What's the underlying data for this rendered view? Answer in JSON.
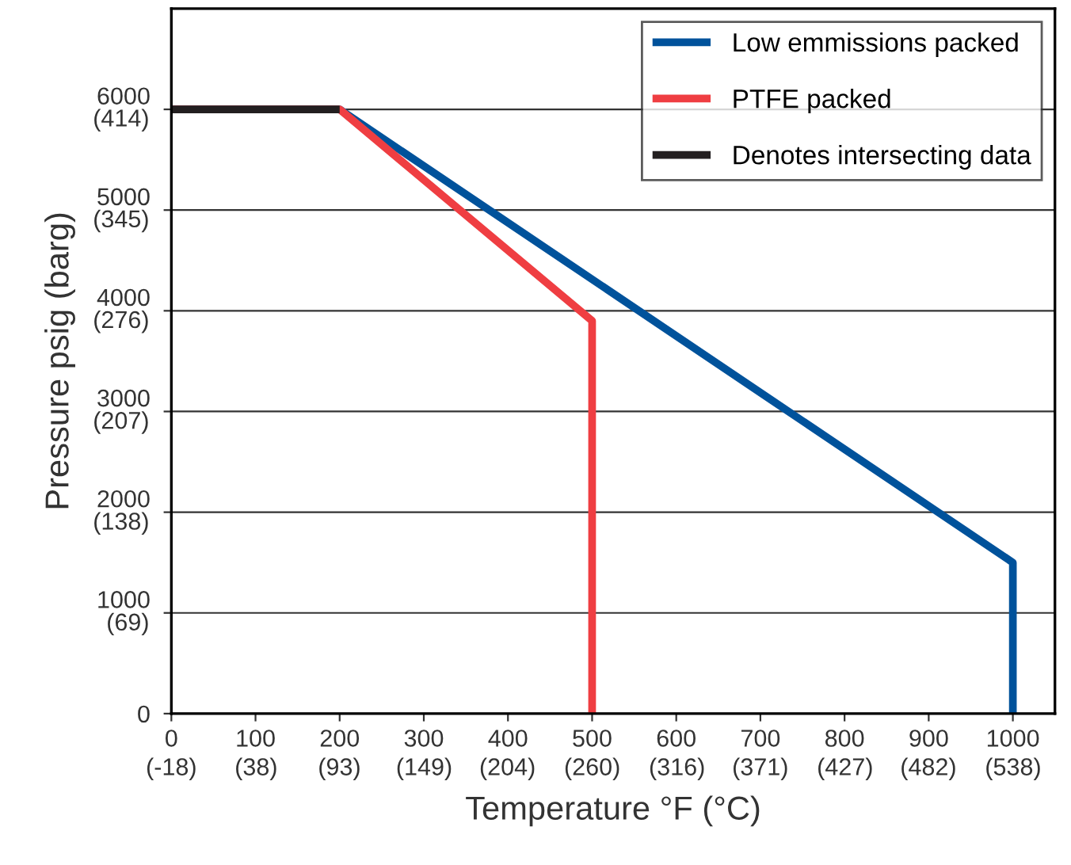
{
  "chart_data": {
    "type": "line",
    "xlabel": "Temperature °F (°C)",
    "y2label": "Pressure psig (barg)",
    "series": [
      {
        "name": "Low emmissions packed",
        "color": "#00529b",
        "x": [
          0,
          200,
          1000,
          1000
        ],
        "values": [
          6000,
          6000,
          1500,
          0
        ]
      },
      {
        "name": "PTFE packed",
        "color": "#ef3e42",
        "x": [
          0,
          200,
          500,
          500
        ],
        "values": [
          6000,
          6000,
          3900,
          0
        ]
      },
      {
        "name": "Denotes intersecting data",
        "color": "#231f20",
        "x": [
          0,
          200
        ],
        "values": [
          6000,
          6000
        ]
      }
    ],
    "xlim": [
      0,
      1050
    ],
    "ylim": [
      0,
      7000
    ],
    "xticks": [
      0,
      100,
      200,
      300,
      400,
      500,
      600,
      700,
      800,
      900,
      1000
    ],
    "x2lim": [
      -18,
      565.6
    ],
    "x2ticks": [
      {
        "value": -18,
        "label": "(-18)"
      },
      {
        "value": 38,
        "label": "(38)"
      },
      {
        "value": 93,
        "label": "(93)"
      },
      {
        "value": 149,
        "label": "(149)"
      },
      {
        "value": 204,
        "label": "(204)"
      },
      {
        "value": 260,
        "label": "(260)"
      },
      {
        "value": 316,
        "label": "(316)"
      },
      {
        "value": 371,
        "label": "(371)"
      },
      {
        "value": 427,
        "label": "(427)"
      },
      {
        "value": 482,
        "label": "(482)"
      },
      {
        "value": 538,
        "label": "(538)"
      }
    ],
    "yticks": [
      0,
      1000,
      2000,
      3000,
      4000,
      5000,
      6000
    ],
    "y2lim": [
      0,
      482.6
    ],
    "y2ticks": [
      {
        "value": 69,
        "label": "(69)"
      },
      {
        "value": 138,
        "label": "(138)"
      },
      {
        "value": 207,
        "label": "(207)"
      },
      {
        "value": 276,
        "label": "(276)"
      },
      {
        "value": 345,
        "label": "(345)"
      },
      {
        "value": 414,
        "label": "(414)"
      }
    ],
    "grid": "y",
    "legend": "top right",
    "line_style": "solid",
    "marker": "none"
  }
}
